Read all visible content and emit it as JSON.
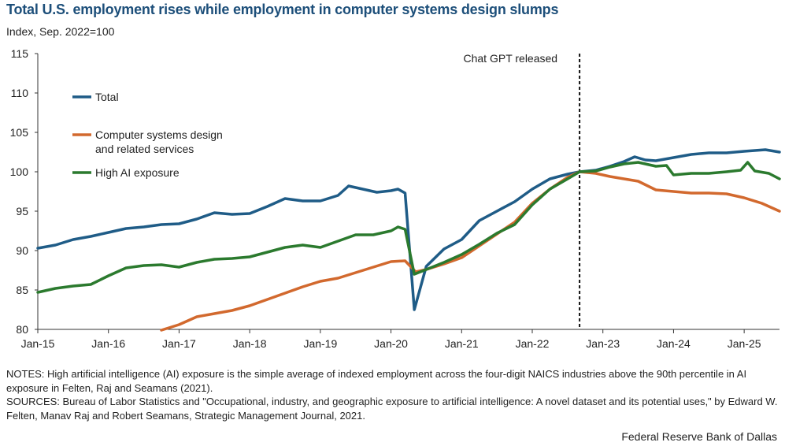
{
  "title": "Total U.S. employment rises while employment in computer systems design slumps",
  "subtitle": "Index, Sep. 2022=100",
  "notes": [
    "NOTES: High artificial intelligence (AI) exposure is the simple average of indexed employment across the four-digit NAICS industries above the 90th percentile in AI exposure in Felten, Raj and Seamans (2021).",
    "SOURCES: Bureau of Labor Statistics and \"Occupational, industry, and geographic exposure to artificial intelligence: A novel dataset and its potential uses,\" by Edward W. Felten, Manav Raj and Robert Seamans, Strategic Management Journal, 2021."
  ],
  "source_credit": "Federal Reserve Bank of Dallas",
  "chart_data": {
    "type": "line",
    "title": "Total U.S. employment rises while employment in computer systems design slumps",
    "ylabel": "Index, Sep. 2022=100",
    "xlabel": "",
    "ylim": [
      80,
      115
    ],
    "yticks": [
      80,
      85,
      90,
      95,
      100,
      105,
      110,
      115
    ],
    "xlim": [
      2015.0,
      2025.5
    ],
    "xticks": [
      {
        "value": 2015,
        "label": "Jan-15"
      },
      {
        "value": 2016,
        "label": "Jan-16"
      },
      {
        "value": 2017,
        "label": "Jan-17"
      },
      {
        "value": 2018,
        "label": "Jan-18"
      },
      {
        "value": 2019,
        "label": "Jan-19"
      },
      {
        "value": 2020,
        "label": "Jan-20"
      },
      {
        "value": 2021,
        "label": "Jan-21"
      },
      {
        "value": 2022,
        "label": "Jan-22"
      },
      {
        "value": 2023,
        "label": "Jan-23"
      },
      {
        "value": 2024,
        "label": "Jan-24"
      },
      {
        "value": 2025,
        "label": "Jan-25"
      }
    ],
    "grid": false,
    "annotation": {
      "label": "Chat GPT released",
      "x": 2022.67
    },
    "series": [
      {
        "name": "Total",
        "color": "#1f5c87",
        "points": [
          [
            2015.0,
            90.3
          ],
          [
            2015.25,
            90.7
          ],
          [
            2015.5,
            91.4
          ],
          [
            2015.75,
            91.8
          ],
          [
            2016.0,
            92.3
          ],
          [
            2016.25,
            92.8
          ],
          [
            2016.5,
            93.0
          ],
          [
            2016.75,
            93.3
          ],
          [
            2017.0,
            93.4
          ],
          [
            2017.25,
            94.0
          ],
          [
            2017.5,
            94.8
          ],
          [
            2017.75,
            94.6
          ],
          [
            2018.0,
            94.7
          ],
          [
            2018.25,
            95.6
          ],
          [
            2018.5,
            96.6
          ],
          [
            2018.75,
            96.3
          ],
          [
            2019.0,
            96.3
          ],
          [
            2019.25,
            97.0
          ],
          [
            2019.4,
            98.2
          ],
          [
            2019.6,
            97.8
          ],
          [
            2019.8,
            97.4
          ],
          [
            2020.0,
            97.6
          ],
          [
            2020.1,
            97.8
          ],
          [
            2020.2,
            97.3
          ],
          [
            2020.33,
            82.5
          ],
          [
            2020.5,
            88.0
          ],
          [
            2020.75,
            90.2
          ],
          [
            2021.0,
            91.4
          ],
          [
            2021.25,
            93.8
          ],
          [
            2021.5,
            95.0
          ],
          [
            2021.75,
            96.2
          ],
          [
            2022.0,
            97.8
          ],
          [
            2022.25,
            99.1
          ],
          [
            2022.5,
            99.7
          ],
          [
            2022.67,
            100.0
          ],
          [
            2022.9,
            100.2
          ],
          [
            2023.1,
            100.7
          ],
          [
            2023.3,
            101.3
          ],
          [
            2023.45,
            101.9
          ],
          [
            2023.6,
            101.5
          ],
          [
            2023.75,
            101.4
          ],
          [
            2024.0,
            101.8
          ],
          [
            2024.25,
            102.2
          ],
          [
            2024.5,
            102.4
          ],
          [
            2024.75,
            102.4
          ],
          [
            2025.0,
            102.6
          ],
          [
            2025.3,
            102.8
          ],
          [
            2025.5,
            102.5
          ]
        ]
      },
      {
        "name": "Computer systems design and related services",
        "legend_lines": [
          "Computer systems design",
          "and related services"
        ],
        "color": "#d2692e",
        "points": [
          [
            2016.75,
            79.9
          ],
          [
            2017.0,
            80.6
          ],
          [
            2017.25,
            81.6
          ],
          [
            2017.5,
            82.0
          ],
          [
            2017.75,
            82.4
          ],
          [
            2018.0,
            83.0
          ],
          [
            2018.25,
            83.8
          ],
          [
            2018.5,
            84.6
          ],
          [
            2018.75,
            85.4
          ],
          [
            2019.0,
            86.1
          ],
          [
            2019.25,
            86.5
          ],
          [
            2019.5,
            87.2
          ],
          [
            2019.75,
            87.9
          ],
          [
            2020.0,
            88.6
          ],
          [
            2020.2,
            88.7
          ],
          [
            2020.35,
            87.3
          ],
          [
            2020.5,
            87.6
          ],
          [
            2020.75,
            88.3
          ],
          [
            2021.0,
            89.1
          ],
          [
            2021.25,
            90.6
          ],
          [
            2021.5,
            92.1
          ],
          [
            2021.75,
            93.6
          ],
          [
            2022.0,
            96.0
          ],
          [
            2022.25,
            97.8
          ],
          [
            2022.5,
            99.3
          ],
          [
            2022.67,
            100.0
          ],
          [
            2022.9,
            99.8
          ],
          [
            2023.1,
            99.4
          ],
          [
            2023.3,
            99.1
          ],
          [
            2023.5,
            98.8
          ],
          [
            2023.75,
            97.7
          ],
          [
            2024.0,
            97.5
          ],
          [
            2024.25,
            97.3
          ],
          [
            2024.5,
            97.3
          ],
          [
            2024.75,
            97.2
          ],
          [
            2025.0,
            96.7
          ],
          [
            2025.25,
            96.0
          ],
          [
            2025.5,
            95.0
          ]
        ]
      },
      {
        "name": "High AI exposure",
        "color": "#2b7a2e",
        "points": [
          [
            2015.0,
            84.7
          ],
          [
            2015.25,
            85.2
          ],
          [
            2015.5,
            85.5
          ],
          [
            2015.75,
            85.7
          ],
          [
            2016.0,
            86.8
          ],
          [
            2016.25,
            87.8
          ],
          [
            2016.5,
            88.1
          ],
          [
            2016.75,
            88.2
          ],
          [
            2017.0,
            87.9
          ],
          [
            2017.25,
            88.5
          ],
          [
            2017.5,
            88.9
          ],
          [
            2017.75,
            89.0
          ],
          [
            2018.0,
            89.2
          ],
          [
            2018.25,
            89.8
          ],
          [
            2018.5,
            90.4
          ],
          [
            2018.75,
            90.7
          ],
          [
            2019.0,
            90.4
          ],
          [
            2019.25,
            91.2
          ],
          [
            2019.5,
            92.0
          ],
          [
            2019.75,
            92.0
          ],
          [
            2020.0,
            92.5
          ],
          [
            2020.1,
            93.0
          ],
          [
            2020.2,
            92.7
          ],
          [
            2020.33,
            87.0
          ],
          [
            2020.5,
            87.6
          ],
          [
            2020.75,
            88.5
          ],
          [
            2021.0,
            89.5
          ],
          [
            2021.25,
            90.8
          ],
          [
            2021.5,
            92.2
          ],
          [
            2021.75,
            93.3
          ],
          [
            2022.0,
            95.8
          ],
          [
            2022.25,
            97.8
          ],
          [
            2022.5,
            99.1
          ],
          [
            2022.67,
            100.0
          ],
          [
            2022.9,
            100.1
          ],
          [
            2023.1,
            100.6
          ],
          [
            2023.3,
            101.0
          ],
          [
            2023.5,
            101.2
          ],
          [
            2023.75,
            100.7
          ],
          [
            2023.9,
            100.8
          ],
          [
            2024.0,
            99.6
          ],
          [
            2024.25,
            99.8
          ],
          [
            2024.5,
            99.8
          ],
          [
            2024.75,
            100.0
          ],
          [
            2024.95,
            100.2
          ],
          [
            2025.05,
            101.2
          ],
          [
            2025.15,
            100.1
          ],
          [
            2025.35,
            99.8
          ],
          [
            2025.5,
            99.1
          ]
        ]
      }
    ]
  }
}
